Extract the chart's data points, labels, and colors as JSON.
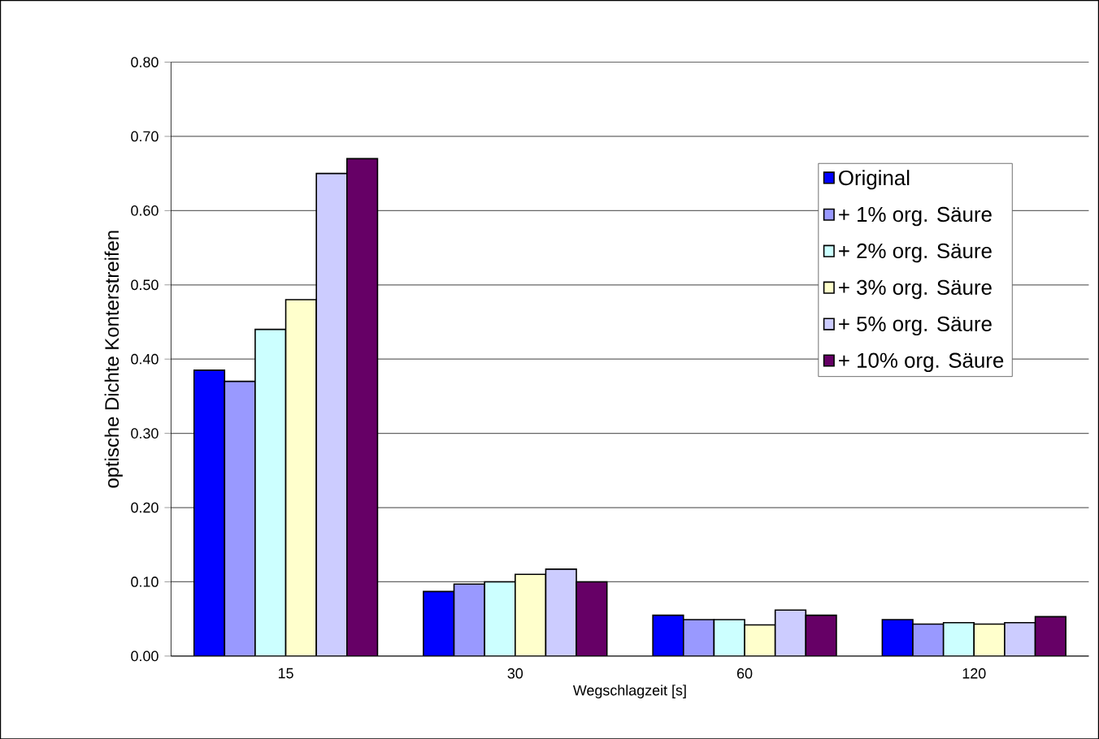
{
  "chart_data": {
    "type": "bar",
    "xlabel": "Wegschlagzeit [s]",
    "ylabel": "optische Dichte Konterstreifen",
    "categories": [
      "15",
      "30",
      "60",
      "120"
    ],
    "series": [
      {
        "name": "Original",
        "color": "#0000ff",
        "values": [
          0.385,
          0.087,
          0.055,
          0.049
        ]
      },
      {
        "name": "+ 1% org. Säure",
        "color": "#9999ff",
        "values": [
          0.37,
          0.097,
          0.049,
          0.043
        ]
      },
      {
        "name": "+ 2% org. Säure",
        "color": "#ccffff",
        "values": [
          0.44,
          0.1,
          0.049,
          0.045
        ]
      },
      {
        "name": "+ 3% org. Säure",
        "color": "#ffffcc",
        "values": [
          0.48,
          0.11,
          0.042,
          0.043
        ]
      },
      {
        "name": "+ 5% org. Säure",
        "color": "#ccccff",
        "values": [
          0.65,
          0.117,
          0.062,
          0.045
        ]
      },
      {
        "name": "+ 10% org. Säure",
        "color": "#660066",
        "values": [
          0.67,
          0.1,
          0.055,
          0.053
        ]
      }
    ],
    "ylim": [
      0,
      0.8
    ],
    "yticks": [
      {
        "value": 0,
        "label": "0.00"
      },
      {
        "value": 0.1,
        "label": "0.10"
      },
      {
        "value": 0.2,
        "label": "0.20"
      },
      {
        "value": 0.3,
        "label": "0.30"
      },
      {
        "value": 0.4,
        "label": "0.40"
      },
      {
        "value": 0.5,
        "label": "0.50"
      },
      {
        "value": 0.6,
        "label": "0.60"
      },
      {
        "value": 0.7,
        "label": "0.70"
      },
      {
        "value": 0.8,
        "label": "0.80"
      }
    ],
    "grid": "y",
    "legend": "top right"
  }
}
